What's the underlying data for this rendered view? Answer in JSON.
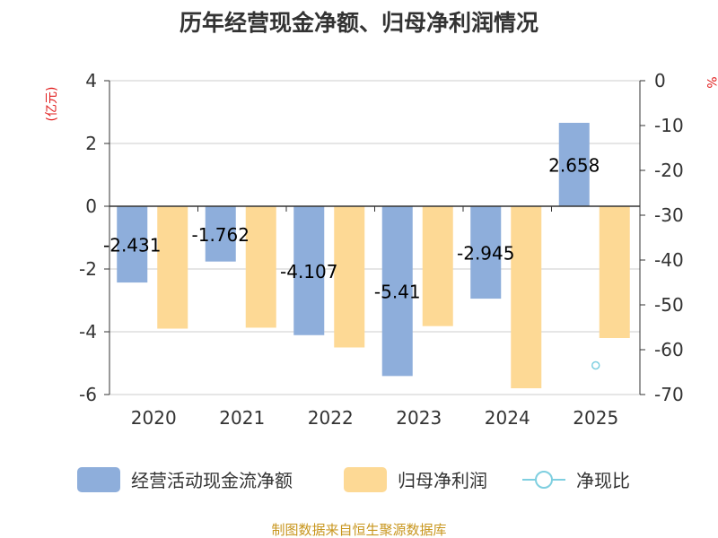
{
  "title": "历年经营现金净额、归母净利润情况",
  "source": "制图数据来自恒生聚源数据库",
  "colors": {
    "cash": "#8eaedb",
    "profit": "#fdd995",
    "ratio": "#7fcfe0",
    "unit_red": "#e01b1b",
    "source_gold": "#c8961e"
  },
  "chart_data": {
    "type": "bar",
    "title": "历年经营现金净额、归母净利润情况",
    "categories": [
      "2020",
      "2021",
      "2022",
      "2023",
      "2024",
      "2025"
    ],
    "y_left": {
      "label": "(亿元)",
      "range": [
        -6,
        4
      ],
      "ticks": [
        "4",
        "2",
        "0",
        "-2",
        "-4",
        "-6"
      ],
      "tick_values": [
        4,
        2,
        0,
        -2,
        -4,
        -6
      ]
    },
    "y_right": {
      "label": "%",
      "range": [
        -70,
        0
      ],
      "ticks": [
        "0",
        "-10",
        "-20",
        "-30",
        "-40",
        "-50",
        "-60",
        "-70"
      ],
      "tick_values": [
        0,
        -10,
        -20,
        -30,
        -40,
        -50,
        -60,
        -70
      ]
    },
    "series": [
      {
        "name": "经营活动现金流净额",
        "type": "bar",
        "axis": "left",
        "values": [
          -2.431,
          -1.762,
          -4.107,
          -5.41,
          -2.945,
          2.658
        ],
        "labels": [
          "-2.431",
          "-1.762",
          "-4.107",
          "-5.41",
          "-2.945",
          "2.658"
        ]
      },
      {
        "name": "归母净利润",
        "type": "bar",
        "axis": "left",
        "values": [
          -3.9,
          -3.87,
          -4.5,
          -3.82,
          -5.8,
          -4.2
        ]
      },
      {
        "name": "净现比",
        "type": "line",
        "axis": "right",
        "values": [
          null,
          null,
          null,
          null,
          null,
          -63.5
        ]
      }
    ],
    "grid": true,
    "legend_position": "bottom"
  }
}
